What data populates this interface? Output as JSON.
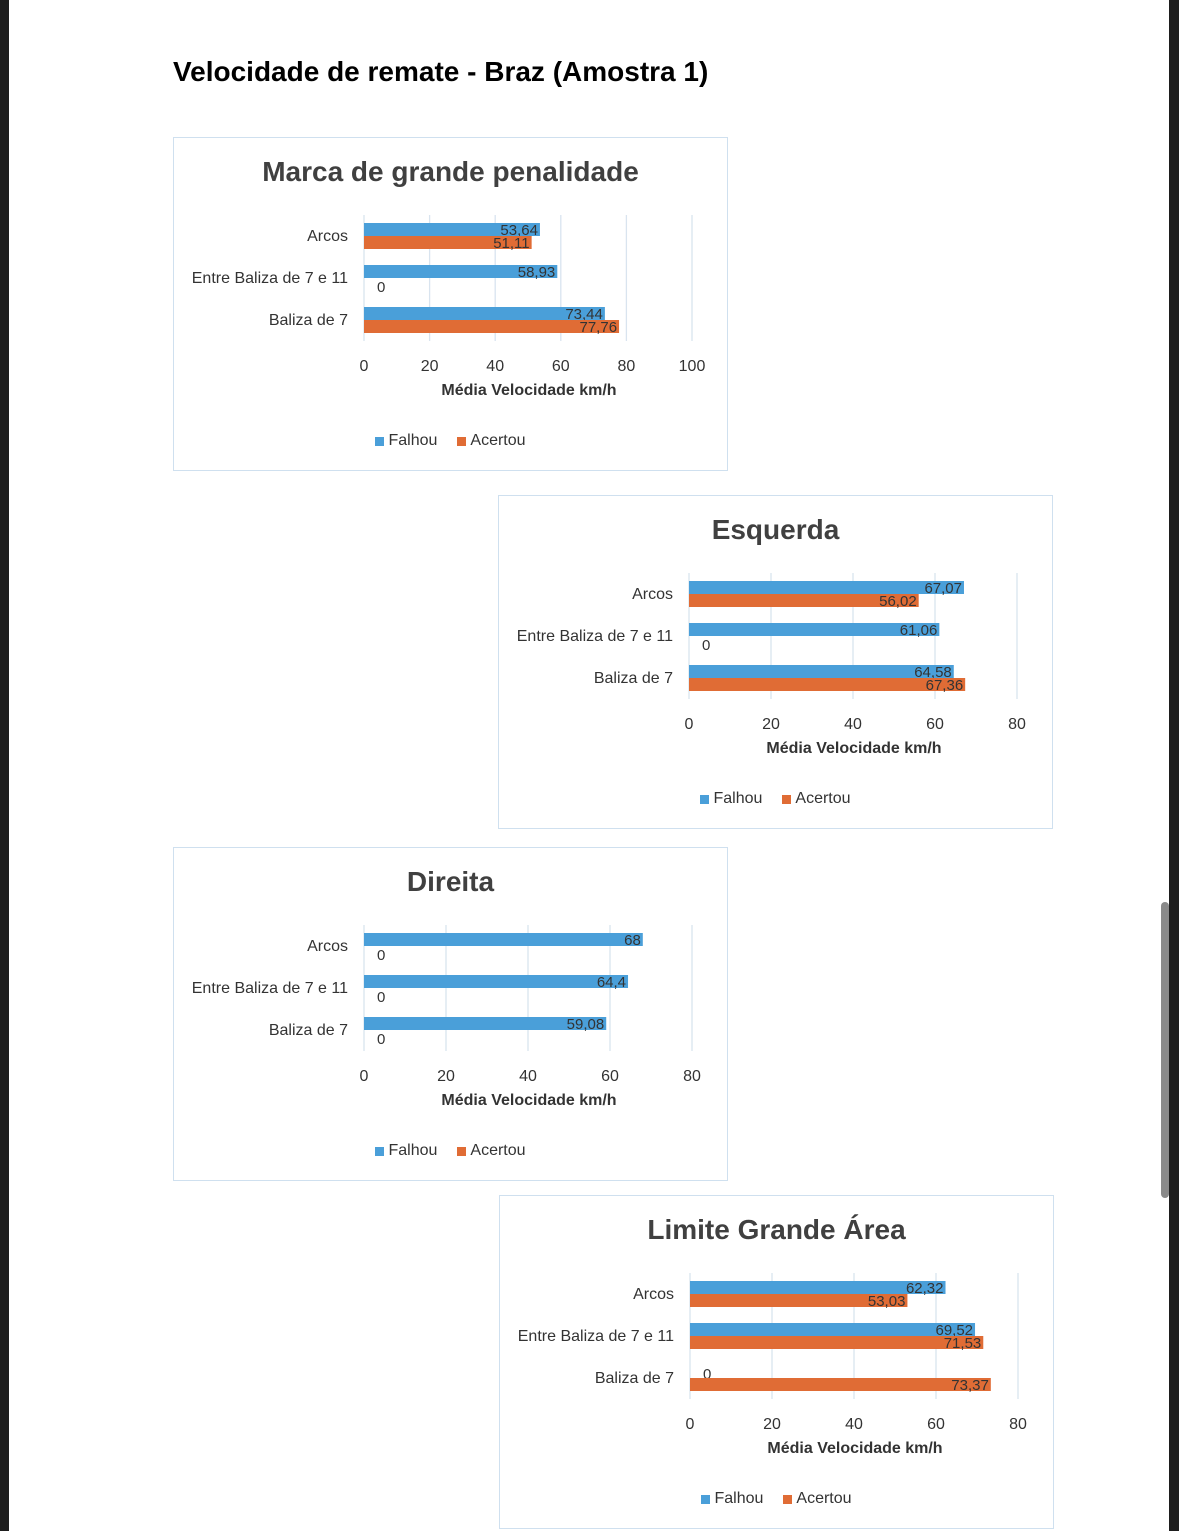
{
  "doc_title": "Velocidade de remate - Braz (Amostra 1)",
  "colors": {
    "falhou": "#4a9fd9",
    "acertou": "#e06c35",
    "grid": "#d9e4ef"
  },
  "chart_data": [
    {
      "type": "bar",
      "orientation": "horizontal",
      "title": "Marca de grande penalidade",
      "xlabel": "Média Velocidade km/h",
      "ylabel": "",
      "categories": [
        "Arcos",
        "Entre Baliza de 7 e 11",
        "Baliza de 7"
      ],
      "series": [
        {
          "name": "Falhou",
          "values": [
            53.64,
            58.93,
            73.44
          ],
          "labels": [
            "53,64",
            "58,93",
            "73,44"
          ]
        },
        {
          "name": "Acertou",
          "values": [
            51.11,
            0,
            77.76
          ],
          "labels": [
            "51,11",
            "0",
            "77,76"
          ]
        }
      ],
      "xlim": [
        0,
        100
      ],
      "ticks": [
        "0",
        "20",
        "40",
        "60",
        "80",
        "100"
      ],
      "grid": true,
      "legend": "bottom"
    },
    {
      "type": "bar",
      "orientation": "horizontal",
      "title": "Esquerda",
      "xlabel": "Média Velocidade km/h",
      "ylabel": "",
      "categories": [
        "Arcos",
        "Entre Baliza de 7 e 11",
        "Baliza de 7"
      ],
      "series": [
        {
          "name": "Falhou",
          "values": [
            67.07,
            61.06,
            64.58
          ],
          "labels": [
            "67,07",
            "61,06",
            "64,58"
          ]
        },
        {
          "name": "Acertou",
          "values": [
            56.02,
            0,
            67.36
          ],
          "labels": [
            "56,02",
            "0",
            "67,36"
          ]
        }
      ],
      "xlim": [
        0,
        80
      ],
      "ticks": [
        "0",
        "20",
        "40",
        "60",
        "80"
      ],
      "grid": true,
      "legend": "bottom"
    },
    {
      "type": "bar",
      "orientation": "horizontal",
      "title": "Direita",
      "xlabel": "Média Velocidade km/h",
      "ylabel": "",
      "categories": [
        "Arcos",
        "Entre Baliza de 7 e 11",
        "Baliza de 7"
      ],
      "series": [
        {
          "name": "Falhou",
          "values": [
            68,
            64.4,
            59.08
          ],
          "labels": [
            "68",
            "64,4",
            "59,08"
          ]
        },
        {
          "name": "Acertou",
          "values": [
            0,
            0,
            0
          ],
          "labels": [
            "0",
            "0",
            "0"
          ]
        }
      ],
      "xlim": [
        0,
        80
      ],
      "ticks": [
        "0",
        "20",
        "40",
        "60",
        "80"
      ],
      "grid": true,
      "legend": "bottom"
    },
    {
      "type": "bar",
      "orientation": "horizontal",
      "title": "Limite Grande Área",
      "xlabel": "Média Velocidade km/h",
      "ylabel": "",
      "categories": [
        "Arcos",
        "Entre Baliza de 7 e 11",
        "Baliza de 7"
      ],
      "series": [
        {
          "name": "Falhou",
          "values": [
            62.32,
            69.52,
            0
          ],
          "labels": [
            "62,32",
            "69,52",
            "0"
          ]
        },
        {
          "name": "Acertou",
          "values": [
            53.03,
            71.53,
            73.37
          ],
          "labels": [
            "53,03",
            "71,53",
            "73,37"
          ]
        }
      ],
      "xlim": [
        0,
        80
      ],
      "ticks": [
        "0",
        "20",
        "40",
        "60",
        "80"
      ],
      "grid": true,
      "legend": "bottom"
    }
  ]
}
